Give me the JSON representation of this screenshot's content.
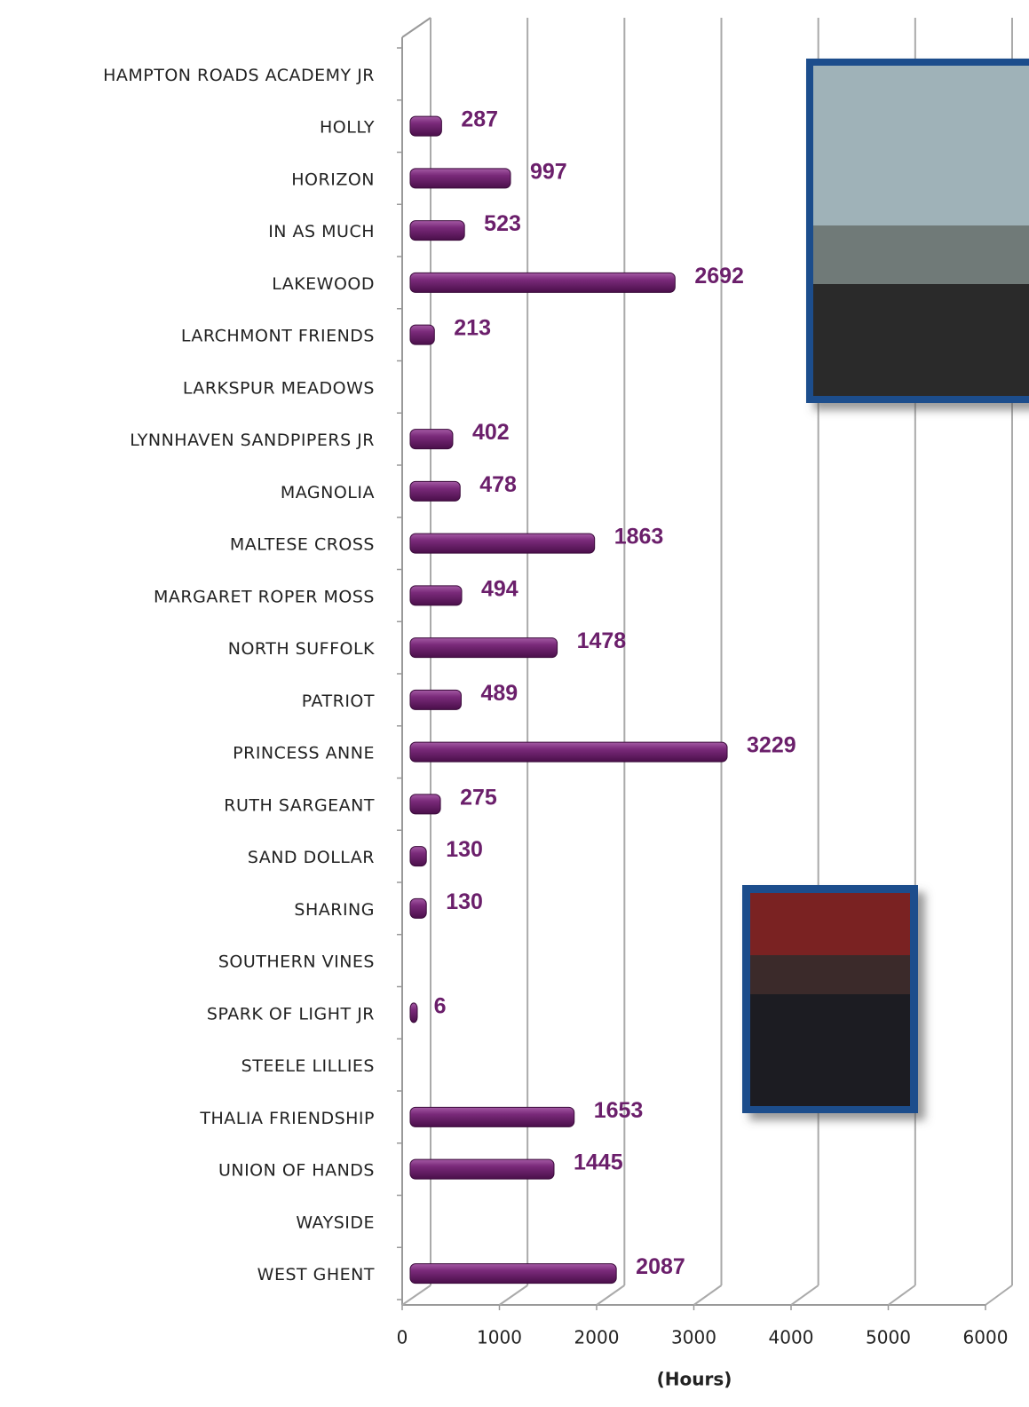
{
  "chart_data": {
    "type": "bar",
    "orientation": "horizontal",
    "x_label": "(Hours)",
    "categories": [
      "HAMPTON ROADS ACADEMY JR",
      "HOLLY",
      "HORIZON",
      "IN AS MUCH",
      "LAKEWOOD",
      "LARCHMONT FRIENDS",
      "LARKSPUR MEADOWS",
      "LYNNHAVEN SANDPIPERS JR",
      "MAGNOLIA",
      "MALTESE CROSS",
      "MARGARET ROPER MOSS",
      "NORTH SUFFOLK",
      "PATRIOT",
      "PRINCESS ANNE",
      "RUTH SARGEANT",
      "SAND DOLLAR",
      "SHARING",
      "SOUTHERN VINES",
      "SPARK OF LIGHT JR",
      "STEELE LILLIES",
      "THALIA FRIENDSHIP",
      "UNION OF HANDS",
      "WAYSIDE",
      "WEST GHENT"
    ],
    "values": [
      null,
      287,
      997,
      523,
      2692,
      213,
      null,
      402,
      478,
      1863,
      494,
      1478,
      489,
      3229,
      275,
      130,
      130,
      null,
      6,
      null,
      1653,
      1445,
      null,
      2087
    ],
    "color": "#6b1f6b",
    "xlim": [
      0,
      6000
    ],
    "xticks": [
      0,
      1000,
      2000,
      3000,
      4000,
      5000,
      6000
    ],
    "grid": true
  }
}
